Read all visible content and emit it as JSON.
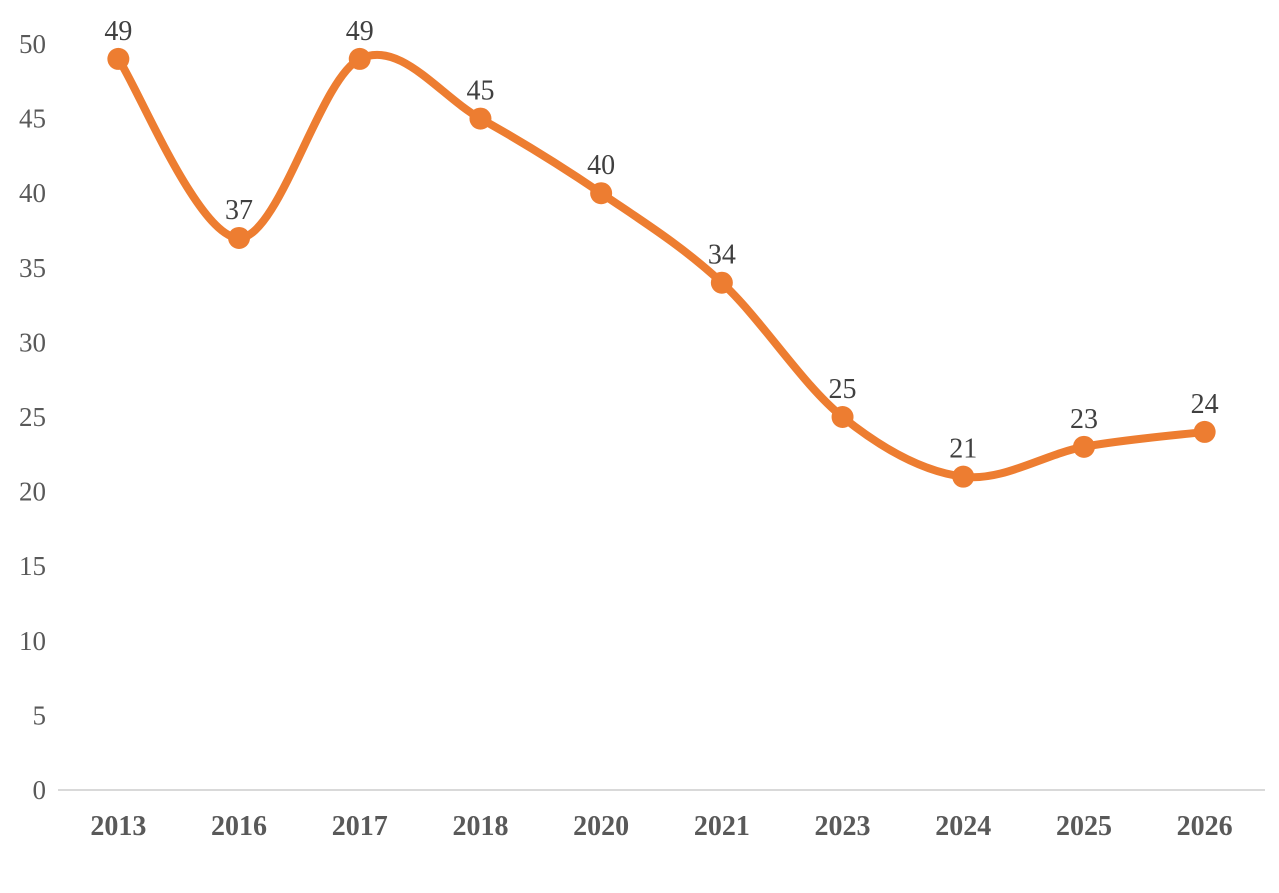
{
  "chart_data": {
    "type": "line",
    "title": "",
    "xlabel": "",
    "ylabel": "",
    "categories": [
      "2013",
      "2016",
      "2017",
      "2018",
      "2020",
      "2021",
      "2023",
      "2024",
      "2025",
      "2026"
    ],
    "values": [
      49,
      37,
      49,
      45,
      40,
      34,
      25,
      21,
      23,
      24
    ],
    "data_labels": [
      "49",
      "37",
      "49",
      "45",
      "40",
      "34",
      "25",
      "21",
      "23",
      "24"
    ],
    "ylim": [
      0,
      50
    ],
    "yticks": [
      0,
      5,
      10,
      15,
      20,
      25,
      30,
      35,
      40,
      45,
      50
    ],
    "grid": false,
    "legend_position": "none",
    "smooth": true,
    "colors": {
      "line": "#ED7D31",
      "marker": "#ED7D31",
      "data_label": "#404040",
      "axis_label": "#595959",
      "axis_line": "#D9D9D9",
      "background": "#FFFFFF"
    }
  }
}
